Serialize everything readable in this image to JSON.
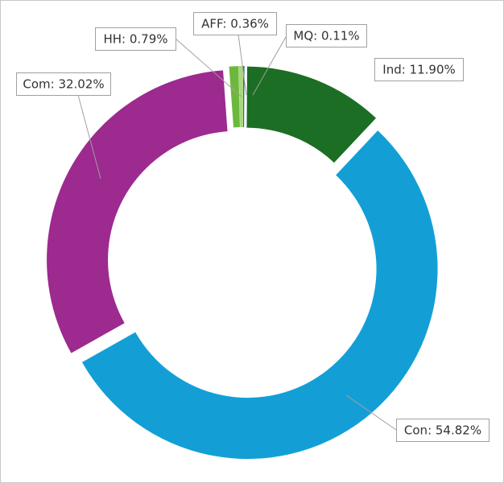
{
  "chart_data": {
    "type": "donut",
    "values": [
      0.11,
      11.9,
      54.82,
      32.02,
      0.79,
      0.36
    ],
    "value_labels": [
      "MQ: 0.11%",
      "Ind: 11.90%",
      "Con: 54.82%",
      "Com: 32.02%",
      "HH: 0.79%",
      "AFF: 0.36%"
    ],
    "colors": [
      "#1f6f86",
      "#1b6e23",
      "#139fd6",
      "#9c2a8f",
      "#6cb83c",
      "#a9d67e"
    ]
  }
}
